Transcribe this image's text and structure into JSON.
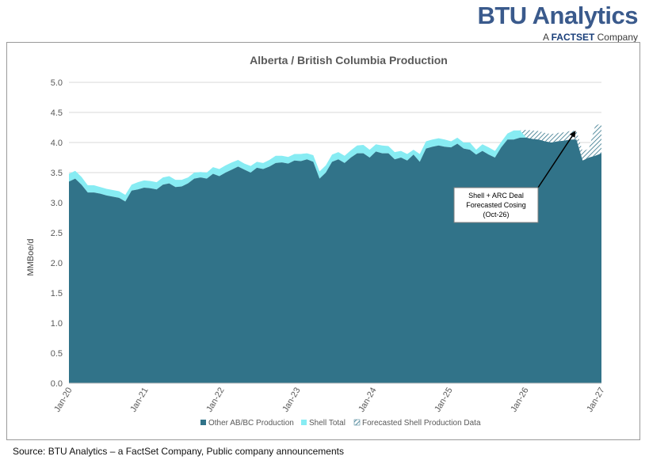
{
  "brand": {
    "logo_main": "BTU Analytics",
    "logo_sub_prefix": "A ",
    "logo_sub_brand": "FACTSET",
    "logo_sub_suffix": " Company"
  },
  "source_note": "Source: BTU Analytics – a FactSet Company, Public company announcements",
  "colors": {
    "other": "#317389",
    "shell": "#87ecf3",
    "forecast_hatch": "#317389",
    "grid": "#d9d9d9",
    "text": "#595959"
  },
  "chart_data": {
    "type": "area",
    "stacked": true,
    "title": "Alberta / British Columbia Production",
    "xlabel": "",
    "ylabel": "MMBoe/d",
    "ylim": [
      0,
      5
    ],
    "yticks": [
      "0.0",
      "0.5",
      "1.0",
      "1.5",
      "2.0",
      "2.5",
      "3.0",
      "3.5",
      "4.0",
      "4.5",
      "5.0"
    ],
    "x_start": "Jan-20",
    "x_end": "Jan-27",
    "xticks": [
      "Jan-20",
      "Jan-21",
      "Jan-22",
      "Jan-23",
      "Jan-24",
      "Jan-25",
      "Jan-26",
      "Jan-27"
    ],
    "grid": "horizontal",
    "legend_position": "bottom",
    "legend": [
      "Other AB/BC Production",
      "Shell Total",
      "Forecasted Shell Production Data"
    ],
    "series": [
      {
        "name": "Other AB/BC Production",
        "values": [
          3.35,
          3.4,
          3.3,
          3.17,
          3.17,
          3.15,
          3.12,
          3.1,
          3.08,
          3.02,
          3.2,
          3.22,
          3.25,
          3.24,
          3.22,
          3.3,
          3.32,
          3.26,
          3.27,
          3.32,
          3.4,
          3.42,
          3.4,
          3.48,
          3.44,
          3.5,
          3.55,
          3.6,
          3.55,
          3.5,
          3.58,
          3.56,
          3.6,
          3.66,
          3.67,
          3.65,
          3.7,
          3.69,
          3.72,
          3.68,
          3.4,
          3.5,
          3.68,
          3.72,
          3.66,
          3.75,
          3.82,
          3.82,
          3.75,
          3.85,
          3.82,
          3.82,
          3.72,
          3.75,
          3.7,
          3.8,
          3.68,
          3.9,
          3.93,
          3.95,
          3.93,
          3.92,
          3.98,
          3.9,
          3.88,
          3.8,
          3.86,
          3.8,
          3.75,
          3.92,
          4.05,
          4.05,
          4.08,
          4.08,
          4.06,
          4.05,
          4.02,
          4.0,
          4.02,
          4.03,
          4.05,
          4.05,
          3.7,
          3.75,
          3.78,
          3.82
        ]
      },
      {
        "name": "Shell Total",
        "values": [
          0.13,
          0.13,
          0.13,
          0.12,
          0.12,
          0.11,
          0.11,
          0.11,
          0.11,
          0.11,
          0.1,
          0.12,
          0.12,
          0.12,
          0.12,
          0.12,
          0.12,
          0.12,
          0.11,
          0.1,
          0.1,
          0.09,
          0.1,
          0.11,
          0.12,
          0.12,
          0.12,
          0.11,
          0.1,
          0.11,
          0.1,
          0.1,
          0.11,
          0.12,
          0.11,
          0.11,
          0.11,
          0.12,
          0.1,
          0.11,
          0.12,
          0.12,
          0.12,
          0.12,
          0.12,
          0.12,
          0.13,
          0.14,
          0.13,
          0.12,
          0.13,
          0.12,
          0.12,
          0.11,
          0.11,
          0.08,
          0.13,
          0.12,
          0.12,
          0.12,
          0.12,
          0.1,
          0.1,
          0.1,
          0.12,
          0.08,
          0.11,
          0.12,
          0.11,
          0.09,
          0.1,
          0.15,
          0.12,
          0,
          0,
          0,
          0,
          0,
          0,
          0,
          0,
          0,
          0,
          0,
          0,
          0
        ]
      },
      {
        "name": "Forecasted Shell Production Data",
        "values": [
          0,
          0,
          0,
          0,
          0,
          0,
          0,
          0,
          0,
          0,
          0,
          0,
          0,
          0,
          0,
          0,
          0,
          0,
          0,
          0,
          0,
          0,
          0,
          0,
          0,
          0,
          0,
          0,
          0,
          0,
          0,
          0,
          0,
          0,
          0,
          0,
          0,
          0,
          0,
          0,
          0,
          0,
          0,
          0,
          0,
          0,
          0,
          0,
          0,
          0,
          0,
          0,
          0,
          0,
          0,
          0,
          0,
          0,
          0,
          0,
          0,
          0,
          0,
          0,
          0,
          0,
          0,
          0,
          0,
          0,
          0,
          0,
          0,
          0.13,
          0.14,
          0.14,
          0.14,
          0.14,
          0.14,
          0.14,
          0.14,
          0.15,
          0.15,
          0.15,
          0.5,
          0.5,
          0.5,
          0.5
        ]
      }
    ],
    "annotation": {
      "lines": [
        "Shell + ARC Deal",
        "Forecasted Cosing",
        "(Oct-26)"
      ],
      "target_x_index": 81,
      "target_y": 4.2
    }
  }
}
